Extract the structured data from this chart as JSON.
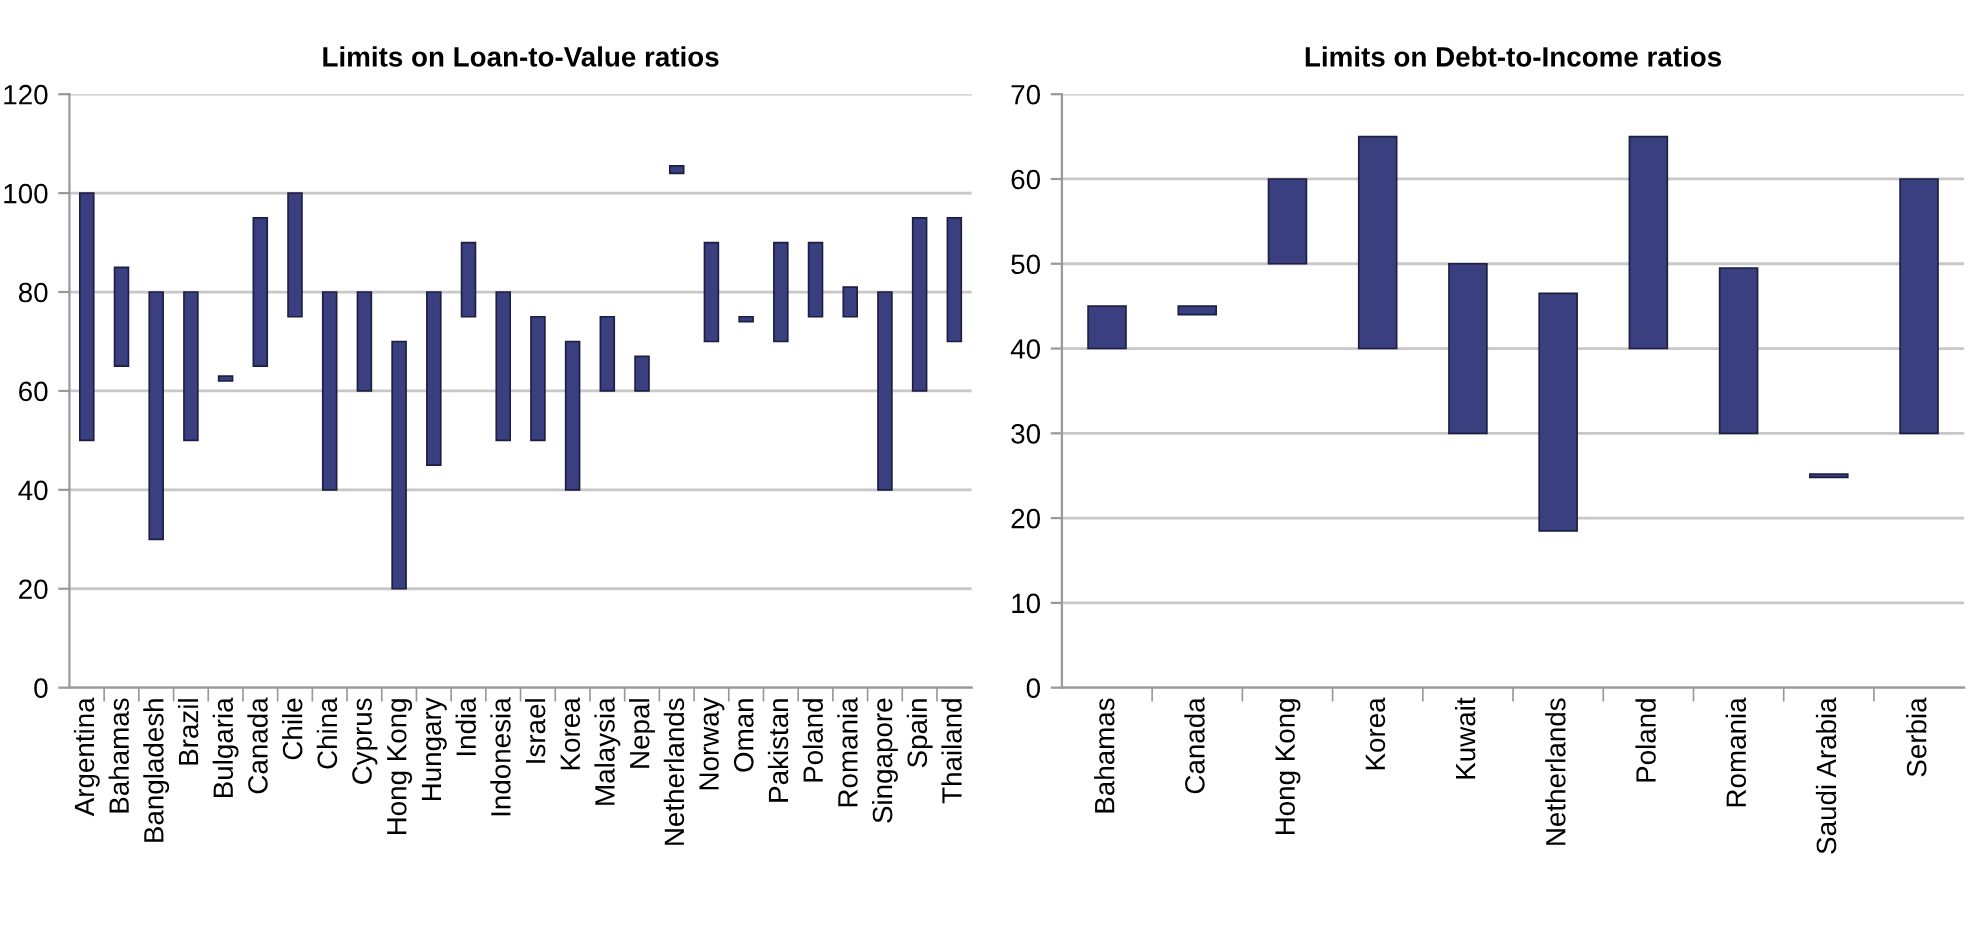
{
  "chart_data": [
    {
      "type": "bar",
      "title": "Limits on Loan-to-Value ratios",
      "categories": [
        "Argentina",
        "Bahamas",
        "Bangladesh",
        "Brazil",
        "Bulgaria",
        "Canada",
        "Chile",
        "China",
        "Cyprus",
        "Hong Kong",
        "Hungary",
        "India",
        "Indonesia",
        "Israel",
        "Korea",
        "Malaysia",
        "Nepal",
        "Netherlands",
        "Norway",
        "Oman",
        "Pakistan",
        "Poland",
        "Romania",
        "Singapore",
        "Spain",
        "Thailand"
      ],
      "base": [
        50,
        65,
        30,
        50,
        62,
        65,
        75,
        40,
        60,
        20,
        45,
        75,
        50,
        50,
        40,
        60,
        60,
        104,
        70,
        74,
        70,
        75,
        75,
        40,
        60,
        70
      ],
      "values": [
        50,
        20,
        50,
        30,
        1,
        30,
        25,
        40,
        20,
        50,
        35,
        15,
        30,
        25,
        30,
        15,
        7,
        1.5,
        20,
        1,
        20,
        15,
        6,
        40,
        35,
        25
      ],
      "color": "#3a3f80",
      "ylim": [
        0,
        120
      ],
      "yticks": [
        0,
        20,
        40,
        60,
        80,
        100,
        120
      ],
      "grid": "y"
    },
    {
      "type": "bar",
      "title": "Limits on Debt-to-Income ratios",
      "categories": [
        "Bahamas",
        "Canada",
        "Hong Kong",
        "Korea",
        "Kuwait",
        "Netherlands",
        "Poland",
        "Romania",
        "Saudi Arabia",
        "Serbia"
      ],
      "base": [
        40,
        44,
        50,
        40,
        30,
        18.5,
        40,
        30,
        24.8,
        30
      ],
      "values": [
        5,
        1,
        10,
        25,
        20,
        28,
        25,
        19.5,
        0.4,
        30
      ],
      "color": "#3a3f80",
      "ylim": [
        0,
        70
      ],
      "yticks": [
        0,
        10,
        20,
        30,
        40,
        50,
        60,
        70
      ],
      "grid": "y"
    }
  ]
}
